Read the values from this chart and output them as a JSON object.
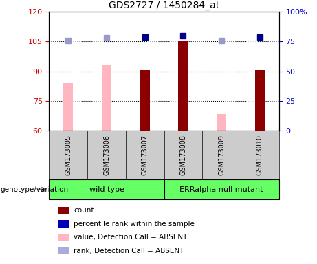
{
  "title": "GDS2727 / 1450284_at",
  "samples": [
    "GSM173005",
    "GSM173006",
    "GSM173007",
    "GSM173008",
    "GSM173009",
    "GSM173010"
  ],
  "bar_bottom": 60,
  "ylim_left": [
    60,
    120
  ],
  "ylim_right": [
    0,
    100
  ],
  "yticks_left": [
    60,
    75,
    90,
    105,
    120
  ],
  "yticks_right": [
    0,
    25,
    50,
    75,
    100
  ],
  "ytick_labels_left": [
    "60",
    "75",
    "90",
    "105",
    "120"
  ],
  "ytick_labels_right": [
    "0",
    "25",
    "50",
    "75",
    "100%"
  ],
  "count_values": [
    null,
    null,
    90.5,
    105.5,
    null,
    90.5
  ],
  "count_color": "#8B0000",
  "value_absent_values": [
    84.0,
    93.5,
    null,
    null,
    68.5,
    null
  ],
  "value_absent_color": "#FFB6C1",
  "rank_right_vals": [
    76,
    78,
    79,
    80,
    76,
    79
  ],
  "rank_absent_flags": [
    true,
    true,
    false,
    false,
    true,
    false
  ],
  "rank_color": "#00008B",
  "rank_absent_color": "#9999CC",
  "left_tick_color": "#CC0000",
  "right_tick_color": "#0000CC",
  "plot_bg_color": "#FFFFFF",
  "sample_bg_color": "#CCCCCC",
  "group_color": "#66FF66",
  "bar_width": 0.25,
  "marker_size": 6,
  "wt_label": "wild type",
  "err_label": "ERRalpha null mutant",
  "geno_label": "genotype/variation",
  "legend_items": [
    {
      "color": "#8B0000",
      "label": "count"
    },
    {
      "color": "#0000BB",
      "label": "percentile rank within the sample"
    },
    {
      "color": "#FFB6C1",
      "label": "value, Detection Call = ABSENT"
    },
    {
      "color": "#AAAADD",
      "label": "rank, Detection Call = ABSENT"
    }
  ]
}
